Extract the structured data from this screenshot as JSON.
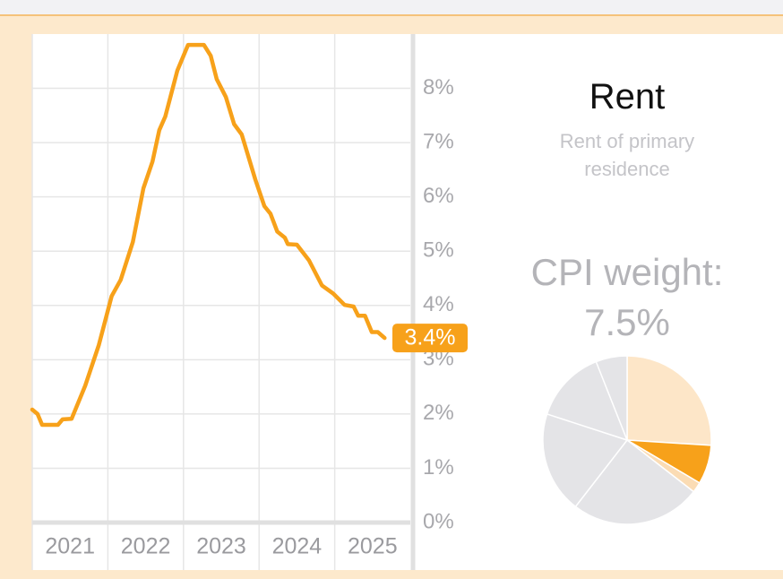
{
  "chart_data": [
    {
      "type": "line",
      "x": [
        2021.0,
        2021.07,
        2021.13,
        2021.34,
        2021.4,
        2021.52,
        2021.7,
        2021.88,
        2022.05,
        2022.17,
        2022.33,
        2022.47,
        2022.59,
        2022.68,
        2022.76,
        2022.92,
        2023.06,
        2023.27,
        2023.36,
        2023.44,
        2023.56,
        2023.67,
        2023.77,
        2023.95,
        2024.07,
        2024.15,
        2024.24,
        2024.34,
        2024.38,
        2024.5,
        2024.66,
        2024.83,
        2024.98,
        2025.13,
        2025.25,
        2025.31,
        2025.4,
        2025.49,
        2025.57,
        2025.66
      ],
      "values": [
        2.08,
        2.0,
        1.8,
        1.8,
        1.9,
        1.91,
        2.52,
        3.27,
        4.17,
        4.47,
        5.17,
        6.16,
        6.65,
        7.23,
        7.48,
        8.33,
        8.8,
        8.8,
        8.6,
        8.17,
        7.84,
        7.34,
        7.15,
        6.32,
        5.83,
        5.69,
        5.36,
        5.25,
        5.13,
        5.12,
        4.83,
        4.37,
        4.22,
        4.01,
        3.98,
        3.81,
        3.81,
        3.51,
        3.51,
        3.4
      ],
      "color": "#f7a11a",
      "end_label": "3.4%",
      "xlim": [
        2021,
        2026
      ],
      "xticks": [
        2021,
        2022,
        2023,
        2024,
        2025
      ],
      "ylim": [
        0,
        9
      ],
      "yticks": [
        {
          "value": 0,
          "label": "0%"
        },
        {
          "value": 1,
          "label": "1%"
        },
        {
          "value": 2,
          "label": "2%"
        },
        {
          "value": 3,
          "label": "3%"
        },
        {
          "value": 4,
          "label": "4%"
        },
        {
          "value": 5,
          "label": "5%"
        },
        {
          "value": 6,
          "label": "6%"
        },
        {
          "value": 7,
          "label": "7%"
        },
        {
          "value": 8,
          "label": "8%"
        }
      ],
      "grid": true
    },
    {
      "type": "pie",
      "heading": "Rent",
      "subtitle": "Rent of primary residence",
      "title": "CPI weight: 7.5%",
      "values": [
        26,
        7.5,
        2,
        25,
        19.5,
        14,
        6
      ],
      "colors": [
        "#fde6c8",
        "#f7a11a",
        "#fbdcb4",
        "#e4e4e7",
        "#e4e4e7",
        "#e4e4e7",
        "#e4e4e7"
      ]
    }
  ]
}
